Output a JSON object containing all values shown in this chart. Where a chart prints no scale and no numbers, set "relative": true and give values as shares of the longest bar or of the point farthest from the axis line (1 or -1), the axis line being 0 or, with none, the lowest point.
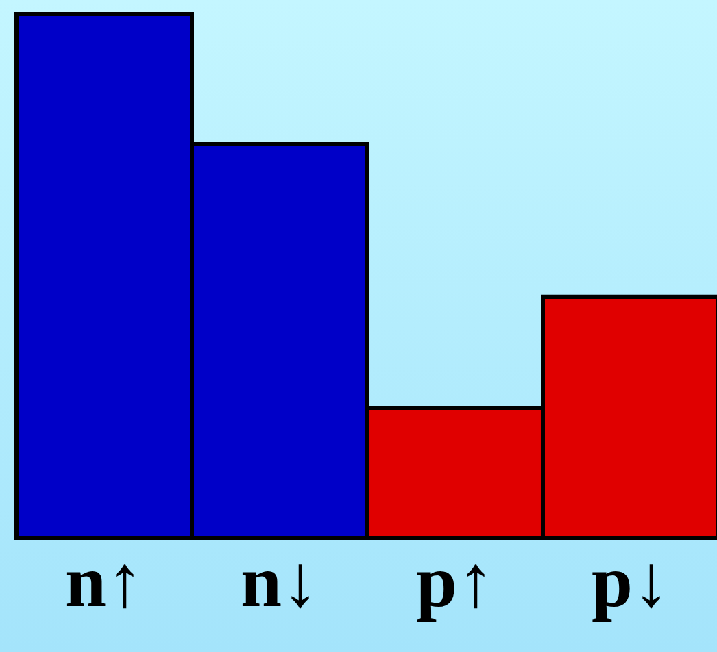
{
  "chart_data": {
    "type": "bar",
    "relative": true,
    "categories": [
      "n↑",
      "n↓",
      "p↑",
      "p↓"
    ],
    "values": [
      1,
      0.752,
      0.248,
      0.46
    ],
    "colors": [
      "#0000c8",
      "#0000c8",
      "#e00000",
      "#e00000"
    ]
  }
}
